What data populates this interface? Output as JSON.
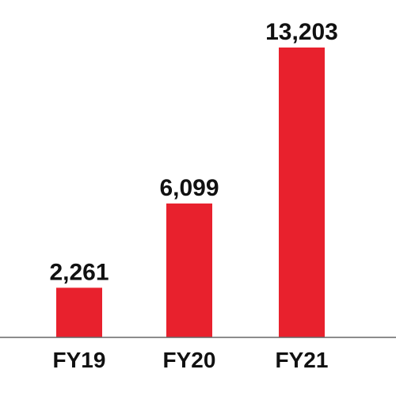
{
  "chart_data": {
    "type": "bar",
    "title": "",
    "xlabel": "",
    "ylabel": "",
    "categories": [
      "FY19",
      "FY20",
      "FY21"
    ],
    "values": [
      2261,
      6099,
      13203
    ],
    "value_labels": [
      "2,261",
      "6,099",
      "13,203"
    ],
    "ylim": [
      0,
      15000
    ],
    "grid": false,
    "legend": "none",
    "bar_color": "#e8212d",
    "axis_color": "#666666"
  }
}
